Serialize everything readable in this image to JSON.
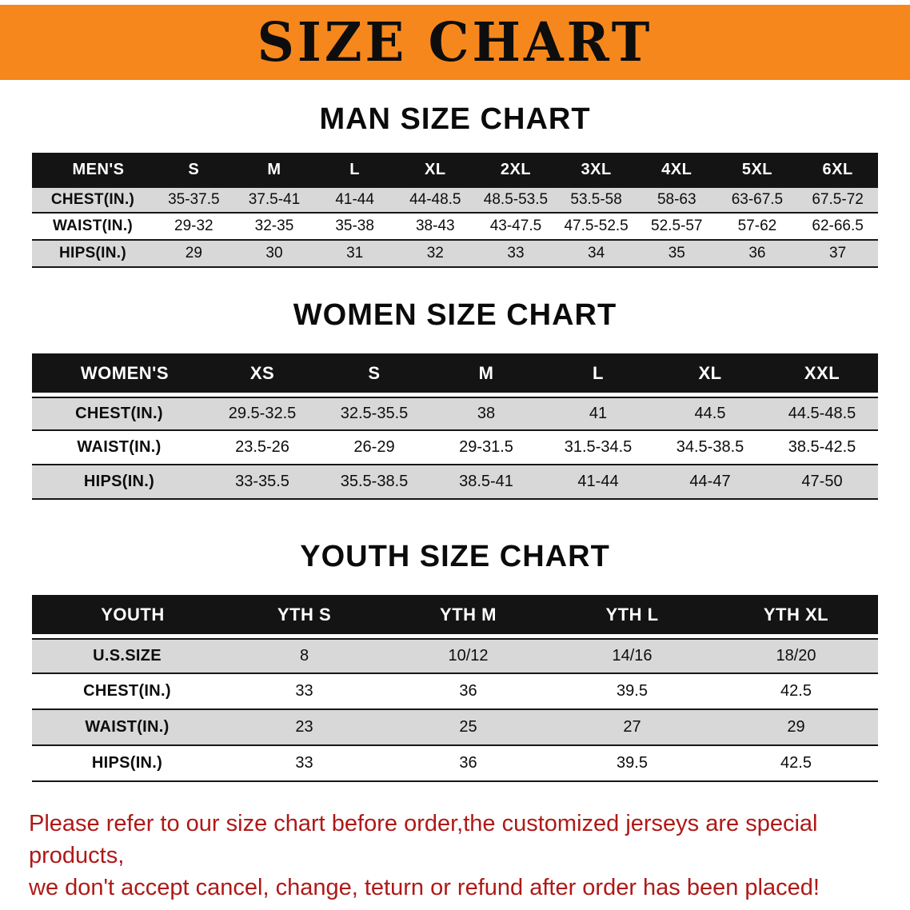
{
  "banner": {
    "title": "SIZE CHART",
    "bg_color": "#F6871D"
  },
  "sections": [
    {
      "id": "men",
      "heading": "MAN SIZE CHART",
      "table": {
        "group_label": "MEN'S",
        "columns": [
          "S",
          "M",
          "L",
          "XL",
          "2XL",
          "3XL",
          "4XL",
          "5XL",
          "6XL"
        ],
        "rows": [
          {
            "label": "CHEST(IN.)",
            "values": [
              "35-37.5",
              "37.5-41",
              "41-44",
              "44-48.5",
              "48.5-53.5",
              "53.5-58",
              "58-63",
              "63-67.5",
              "67.5-72"
            ]
          },
          {
            "label": "WAIST(IN.)",
            "values": [
              "29-32",
              "32-35",
              "35-38",
              "38-43",
              "43-47.5",
              "47.5-52.5",
              "52.5-57",
              "57-62",
              "62-66.5"
            ]
          },
          {
            "label": "HIPS(IN.)",
            "values": [
              "29",
              "30",
              "31",
              "32",
              "33",
              "34",
              "35",
              "36",
              "37"
            ]
          }
        ]
      }
    },
    {
      "id": "women",
      "heading": "WOMEN SIZE CHART",
      "table": {
        "group_label": "WOMEN'S",
        "columns": [
          "XS",
          "S",
          "M",
          "L",
          "XL",
          "XXL"
        ],
        "rows": [
          {
            "label": "CHEST(IN.)",
            "values": [
              "29.5-32.5",
              "32.5-35.5",
              "38",
              "41",
              "44.5",
              "44.5-48.5"
            ]
          },
          {
            "label": "WAIST(IN.)",
            "values": [
              "23.5-26",
              "26-29",
              "29-31.5",
              "31.5-34.5",
              "34.5-38.5",
              "38.5-42.5"
            ]
          },
          {
            "label": "HIPS(IN.)",
            "values": [
              "33-35.5",
              "35.5-38.5",
              "38.5-41",
              "41-44",
              "44-47",
              "47-50"
            ]
          }
        ]
      }
    },
    {
      "id": "youth",
      "heading": "YOUTH SIZE CHART",
      "table": {
        "group_label": "YOUTH",
        "columns": [
          "YTH S",
          "YTH M",
          "YTH L",
          "YTH XL"
        ],
        "rows": [
          {
            "label": "U.S.SIZE",
            "values": [
              "8",
              "10/12",
              "14/16",
              "18/20"
            ]
          },
          {
            "label": "CHEST(IN.)",
            "values": [
              "33",
              "36",
              "39.5",
              "42.5"
            ]
          },
          {
            "label": "WAIST(IN.)",
            "values": [
              "23",
              "25",
              "27",
              "29"
            ]
          },
          {
            "label": "HIPS(IN.)",
            "values": [
              "33",
              "36",
              "39.5",
              "42.5"
            ]
          }
        ]
      }
    }
  ],
  "footer": {
    "line1": "Please refer to our size chart before order,the customized jerseys are special products,",
    "line2": "we don't accept cancel, change, teturn or refund after order has been placed!",
    "color": "#AF1917"
  }
}
